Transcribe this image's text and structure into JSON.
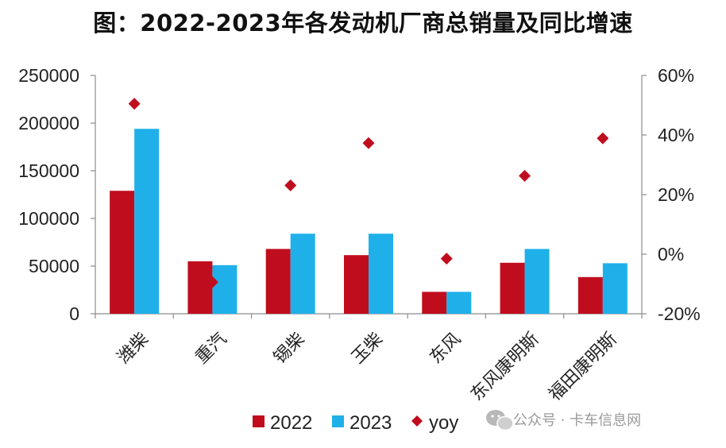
{
  "chart_data": {
    "type": "bar",
    "title": "图：2022-2023年各发动机厂商总销量及同比增速",
    "categories": [
      "潍柴",
      "重汽",
      "锡柴",
      "玉柴",
      "东风",
      "东风康明斯",
      "福田康明斯"
    ],
    "series": [
      {
        "name": "2022",
        "type": "bar",
        "axis": "left",
        "color": "#C00D1E",
        "values": [
          129000,
          55000,
          68000,
          61500,
          23000,
          53500,
          38500
        ]
      },
      {
        "name": "2023",
        "type": "bar",
        "axis": "left",
        "color": "#1FB0EA",
        "values": [
          194000,
          51000,
          84000,
          84000,
          23000,
          68000,
          53000
        ]
      },
      {
        "name": "yoy",
        "type": "scatter",
        "marker": "diamond",
        "axis": "right",
        "color": "#C00D1E",
        "values": [
          0.505,
          -0.094,
          0.231,
          0.373,
          -0.015,
          0.263,
          0.389
        ]
      }
    ],
    "y_left": {
      "min": 0,
      "max": 250000,
      "ticks": [
        0,
        50000,
        100000,
        150000,
        200000,
        250000
      ],
      "tick_labels": [
        "0",
        "50000",
        "100000",
        "150000",
        "200000",
        "250000"
      ]
    },
    "y_right": {
      "min": -0.2,
      "max": 0.6,
      "ticks": [
        -0.2,
        0,
        0.2,
        0.4,
        0.6
      ],
      "tick_labels": [
        "-20%",
        "0%",
        "20%",
        "40%",
        "60%"
      ]
    },
    "grid": false,
    "legend_position": "bottom"
  },
  "watermark": {
    "text": "公众号 · 卡车信息网",
    "icon": "wechat-icon"
  }
}
